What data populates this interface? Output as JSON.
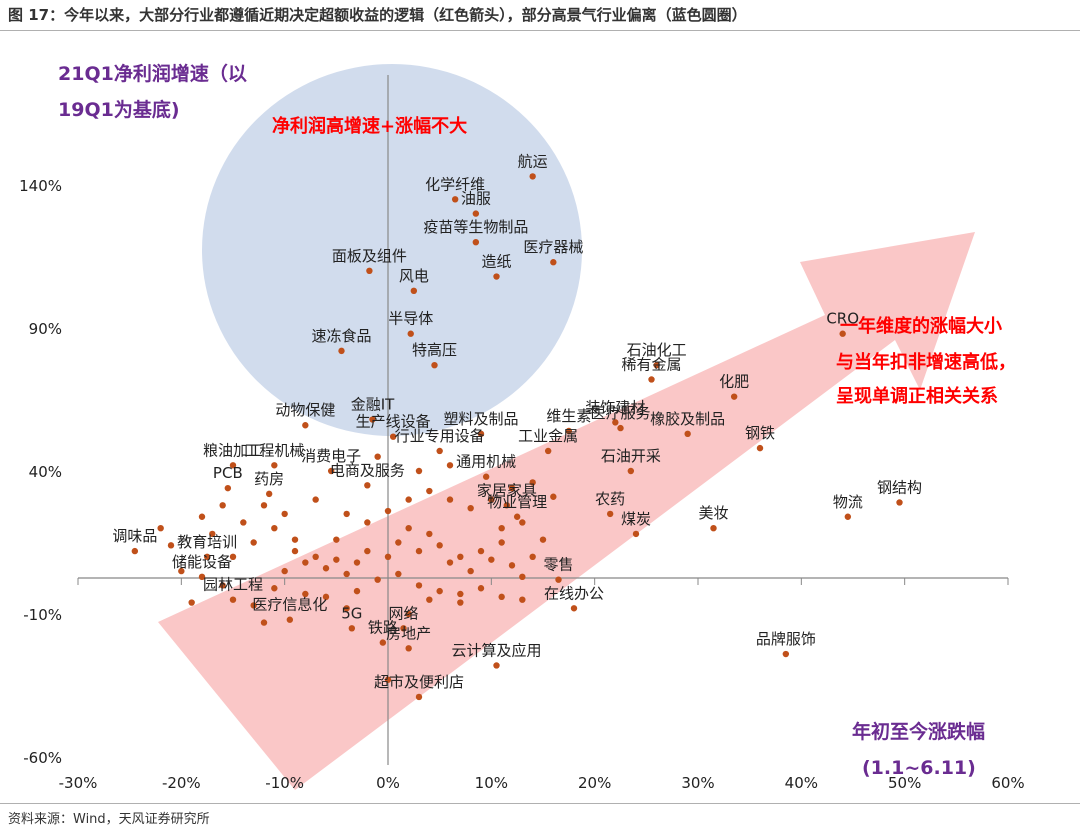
{
  "figure_title": "图 17：今年以来，大部分行业都遵循近期决定超额收益的逻辑（红色箭头），部分高景气行业偏离（蓝色圆圈）",
  "source": "资料来源：Wind，天风证券研究所",
  "colors": {
    "point": "#c0501a",
    "circle": "#c9d6ea",
    "arrow": "#f8b4b4",
    "purple": "#6a2c91",
    "red": "#ff0000"
  },
  "annotations": {
    "ylabel_lines": [
      "21Q1净利润增速（以",
      "19Q1为基底)"
    ],
    "xlabel_lines": [
      "年初至今涨跌幅",
      "(1.1~6.11)"
    ],
    "circle_text": "净利润高增速+涨幅不大",
    "arrow_text_lines": [
      "一年维度的涨幅大小",
      "与当年扣非增速高低，",
      "呈现单调正相关关系"
    ]
  },
  "chart_data": {
    "type": "scatter",
    "xlabel": "年初至今涨跌幅 (1.1~6.11)",
    "ylabel": "21Q1净利润增速（以19Q1为基底)",
    "xlim": [
      -30,
      60
    ],
    "ylim": [
      -60,
      140
    ],
    "x_ticks": [
      "-30%",
      "-20%",
      "-10%",
      "0%",
      "10%",
      "20%",
      "30%",
      "40%",
      "50%",
      "60%"
    ],
    "x_tick_values": [
      -30,
      -20,
      -10,
      0,
      10,
      20,
      30,
      40,
      50,
      60
    ],
    "y_ticks": [
      "140%",
      "90%",
      "40%",
      "-10%",
      "-60%"
    ],
    "y_tick_values": [
      140,
      90,
      40,
      -10,
      -60
    ],
    "labeled_points": [
      {
        "label": "航运",
        "x": 14.0,
        "y": 143
      },
      {
        "label": "化学纤维",
        "x": 6.5,
        "y": 135
      },
      {
        "label": "油服",
        "x": 8.5,
        "y": 130
      },
      {
        "label": "疫苗等生物制品",
        "x": 8.5,
        "y": 120
      },
      {
        "label": "造纸",
        "x": 10.5,
        "y": 108
      },
      {
        "label": "医疗器械",
        "x": 16.0,
        "y": 113
      },
      {
        "label": "面板及组件",
        "x": -1.8,
        "y": 110
      },
      {
        "label": "风电",
        "x": 2.5,
        "y": 103
      },
      {
        "label": "半导体",
        "x": 2.2,
        "y": 88
      },
      {
        "label": "速冻食品",
        "x": -4.5,
        "y": 82
      },
      {
        "label": "特高压",
        "x": 4.5,
        "y": 77
      },
      {
        "label": "CRO",
        "x": 44.0,
        "y": 88
      },
      {
        "label": "石油化工",
        "x": 26.0,
        "y": 77
      },
      {
        "label": "稀有金属",
        "x": 25.5,
        "y": 72
      },
      {
        "label": "化肥",
        "x": 33.5,
        "y": 66
      },
      {
        "label": "钢铁",
        "x": 36.0,
        "y": 48
      },
      {
        "label": "钢结构",
        "x": 49.5,
        "y": 29
      },
      {
        "label": "物流",
        "x": 44.5,
        "y": 24
      },
      {
        "label": "美妆",
        "x": 31.5,
        "y": 20
      },
      {
        "label": "品牌服饰",
        "x": 38.5,
        "y": -24
      },
      {
        "label": "装饰建材",
        "x": 22.0,
        "y": 57
      },
      {
        "label": "医疗服务",
        "x": 22.5,
        "y": 55
      },
      {
        "label": "橡胶及制品",
        "x": 29.0,
        "y": 53
      },
      {
        "label": "维生素",
        "x": 17.5,
        "y": 54
      },
      {
        "label": "塑料及制品",
        "x": 9.0,
        "y": 53
      },
      {
        "label": "工业金属",
        "x": 15.5,
        "y": 47
      },
      {
        "label": "石油开采",
        "x": 23.5,
        "y": 40
      },
      {
        "label": "农药",
        "x": 21.5,
        "y": 25
      },
      {
        "label": "煤炭",
        "x": 24.0,
        "y": 18
      },
      {
        "label": "动物保健",
        "x": -8.0,
        "y": 56
      },
      {
        "label": "金融IT",
        "x": -1.5,
        "y": 58
      },
      {
        "label": "生产线设备",
        "x": 0.5,
        "y": 52
      },
      {
        "label": "行业专用设备",
        "x": 5.0,
        "y": 47
      },
      {
        "label": "粮油加工",
        "x": -15.0,
        "y": 42
      },
      {
        "label": "工程机械",
        "x": -11.0,
        "y": 42
      },
      {
        "label": "消费电子",
        "x": -5.5,
        "y": 40
      },
      {
        "label": "电商及服务",
        "x": -2.0,
        "y": 35
      },
      {
        "label": "药房",
        "x": -11.5,
        "y": 32
      },
      {
        "label": "PCB",
        "x": -15.5,
        "y": 34
      },
      {
        "label": "调味品",
        "x": -24.5,
        "y": 12
      },
      {
        "label": "教育培训",
        "x": -17.5,
        "y": 10
      },
      {
        "label": "储能设备",
        "x": -18.0,
        "y": 3
      },
      {
        "label": "通用机械",
        "x": 9.5,
        "y": 38
      },
      {
        "label": "家居家具",
        "x": 11.5,
        "y": 28
      },
      {
        "label": "物业管理",
        "x": 12.5,
        "y": 24
      },
      {
        "label": "园林工程",
        "x": -15.0,
        "y": -5
      },
      {
        "label": "医疗信息化",
        "x": -9.5,
        "y": -12
      },
      {
        "label": "5G",
        "x": -3.5,
        "y": -15
      },
      {
        "label": "网络",
        "x": 1.5,
        "y": -15
      },
      {
        "label": "铁路",
        "x": -0.5,
        "y": -20
      },
      {
        "label": "房地产",
        "x": 2.0,
        "y": -22
      },
      {
        "label": "云计算及应用",
        "x": 10.5,
        "y": -28
      },
      {
        "label": "超市及便利店",
        "x": 3.0,
        "y": -39
      },
      {
        "label": "在线办公",
        "x": 18.0,
        "y": -8
      },
      {
        "label": "零售",
        "x": 16.5,
        "y": 2
      }
    ],
    "unlabeled_points": [
      {
        "x": -12,
        "y": 28
      },
      {
        "x": -14,
        "y": 22
      },
      {
        "x": -11,
        "y": 20
      },
      {
        "x": -13,
        "y": 15
      },
      {
        "x": -9,
        "y": 12
      },
      {
        "x": -7,
        "y": 10
      },
      {
        "x": -8,
        "y": 8
      },
      {
        "x": -10,
        "y": 5
      },
      {
        "x": -6,
        "y": 6
      },
      {
        "x": -5,
        "y": 9
      },
      {
        "x": -4,
        "y": 4
      },
      {
        "x": -3,
        "y": 8
      },
      {
        "x": -2,
        "y": 12
      },
      {
        "x": 0,
        "y": 10
      },
      {
        "x": 1,
        "y": 15
      },
      {
        "x": 2,
        "y": 20
      },
      {
        "x": 3,
        "y": 12
      },
      {
        "x": 4,
        "y": 18
      },
      {
        "x": 5,
        "y": 14
      },
      {
        "x": 6,
        "y": 8
      },
      {
        "x": 7,
        "y": 10
      },
      {
        "x": 8,
        "y": 5
      },
      {
        "x": 9,
        "y": 12
      },
      {
        "x": 10,
        "y": 9
      },
      {
        "x": 11,
        "y": 15
      },
      {
        "x": 12,
        "y": 7
      },
      {
        "x": 13,
        "y": 3
      },
      {
        "x": 14,
        "y": 10
      },
      {
        "x": -1,
        "y": 2
      },
      {
        "x": 1,
        "y": 4
      },
      {
        "x": 3,
        "y": 0
      },
      {
        "x": 5,
        "y": -2
      },
      {
        "x": 7,
        "y": -3
      },
      {
        "x": 9,
        "y": -1
      },
      {
        "x": 11,
        "y": -4
      },
      {
        "x": 13,
        "y": -5
      },
      {
        "x": -3,
        "y": -2
      },
      {
        "x": -6,
        "y": -4
      },
      {
        "x": -8,
        "y": -3
      },
      {
        "x": -11,
        "y": -1
      },
      {
        "x": -13,
        "y": -7
      },
      {
        "x": -16,
        "y": 0
      },
      {
        "x": -19,
        "y": -6
      },
      {
        "x": -20,
        "y": 5
      },
      {
        "x": -17,
        "y": 18
      },
      {
        "x": -18,
        "y": 24
      },
      {
        "x": -16,
        "y": 28
      },
      {
        "x": -10,
        "y": 25
      },
      {
        "x": -7,
        "y": 30
      },
      {
        "x": -4,
        "y": 25
      },
      {
        "x": -2,
        "y": 22
      },
      {
        "x": 0,
        "y": 26
      },
      {
        "x": 2,
        "y": 30
      },
      {
        "x": 4,
        "y": 33
      },
      {
        "x": 6,
        "y": 30
      },
      {
        "x": 8,
        "y": 27
      },
      {
        "x": 10,
        "y": 30
      },
      {
        "x": 12,
        "y": 34
      },
      {
        "x": 14,
        "y": 36
      },
      {
        "x": 6,
        "y": 42
      },
      {
        "x": 3,
        "y": 40
      },
      {
        "x": -1,
        "y": 45
      },
      {
        "x": 16,
        "y": 31
      },
      {
        "x": -12,
        "y": -13
      },
      {
        "x": -4,
        "y": -8
      },
      {
        "x": 2,
        "y": -10
      },
      {
        "x": 4,
        "y": -5
      },
      {
        "x": 7,
        "y": -6
      },
      {
        "x": 0,
        "y": -33
      },
      {
        "x": -9,
        "y": 16
      },
      {
        "x": -5,
        "y": 16
      },
      {
        "x": 11,
        "y": 20
      },
      {
        "x": 13,
        "y": 22
      },
      {
        "x": 15,
        "y": 16
      },
      {
        "x": -15,
        "y": 10
      },
      {
        "x": -22,
        "y": 20
      },
      {
        "x": -21,
        "y": 14
      }
    ]
  }
}
